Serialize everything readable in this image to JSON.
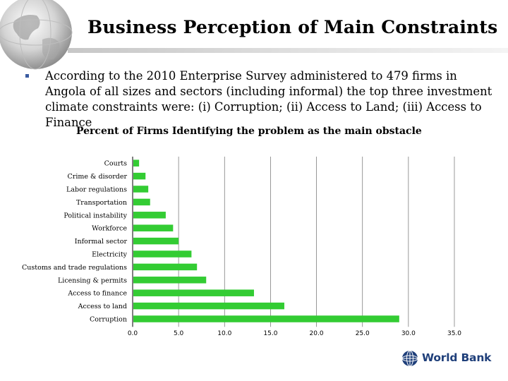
{
  "slide": {
    "title": "Business Perception of Main Constraints",
    "bullet_text": "According to the 2010 Enterprise Survey administered to 479 firms in Angola of all sizes and sectors (including informal) the top three investment climate constraints were: (i) Corruption; (ii) Access to Land; (iii) Access to Finance"
  },
  "logo": {
    "text": "World Bank",
    "icon": "world-bank-globe-logo-icon"
  },
  "colors": {
    "bar": "#33cc33",
    "grid": "#7f7f7f",
    "logo_text": "#1f3f7a",
    "bullet": "#3a5ba0"
  },
  "chart_data": {
    "type": "bar",
    "orientation": "horizontal",
    "title": "Percent of Firms Identifying the problem as the main obstacle",
    "categories": [
      "Courts",
      "Crime & disorder",
      "Labor regulations",
      "Transportation",
      "Political instability",
      "Workforce",
      "Informal sector",
      "Electricity",
      "Customs and trade regulations",
      "Licensing & permits",
      "Access to finance",
      "Access to land",
      "Corruption"
    ],
    "values": [
      0.7,
      1.4,
      1.7,
      1.9,
      3.6,
      4.4,
      5.0,
      6.4,
      7.0,
      8.0,
      13.2,
      16.5,
      29.0
    ],
    "xlim": [
      0,
      35
    ],
    "xticks": [
      "0.0",
      "5.0",
      "10.0",
      "15.0",
      "20.0",
      "25.0",
      "30.0",
      "35.0"
    ],
    "xlabel": "",
    "ylabel": "",
    "grid": "vertical"
  }
}
